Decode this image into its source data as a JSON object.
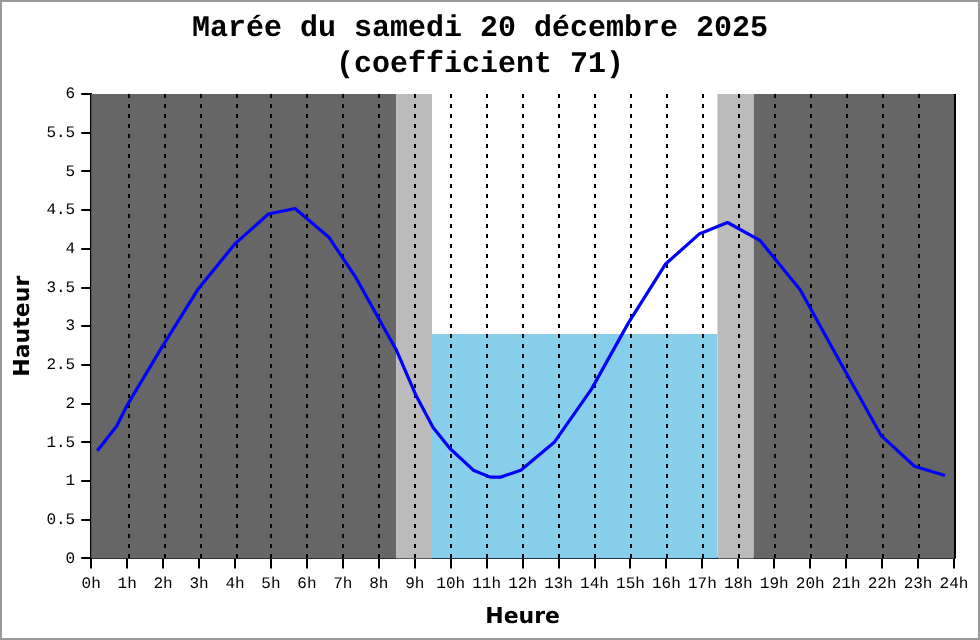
{
  "chart_data": {
    "type": "line",
    "title": "Marée du samedi 20 décembre 2025",
    "subtitle": "(coefficient 71)",
    "xlabel": "Heure",
    "ylabel": "Hauteur",
    "xlim": [
      0,
      24
    ],
    "ylim": [
      0,
      6
    ],
    "xticks": [
      {
        "value": 0,
        "label": "0h"
      },
      {
        "value": 1,
        "label": "1h"
      },
      {
        "value": 2,
        "label": "2h"
      },
      {
        "value": 3,
        "label": "3h"
      },
      {
        "value": 4,
        "label": "4h"
      },
      {
        "value": 5,
        "label": "5h"
      },
      {
        "value": 6,
        "label": "6h"
      },
      {
        "value": 7,
        "label": "7h"
      },
      {
        "value": 8,
        "label": "8h"
      },
      {
        "value": 9,
        "label": "9h"
      },
      {
        "value": 10,
        "label": "10h"
      },
      {
        "value": 11,
        "label": "11h"
      },
      {
        "value": 12,
        "label": "12h"
      },
      {
        "value": 13,
        "label": "13h"
      },
      {
        "value": 14,
        "label": "14h"
      },
      {
        "value": 15,
        "label": "15h"
      },
      {
        "value": 16,
        "label": "16h"
      },
      {
        "value": 17,
        "label": "17h"
      },
      {
        "value": 18,
        "label": "18h"
      },
      {
        "value": 19,
        "label": "19h"
      },
      {
        "value": 20,
        "label": "20h"
      },
      {
        "value": 21,
        "label": "21h"
      },
      {
        "value": 22,
        "label": "22h"
      },
      {
        "value": 23,
        "label": "23h"
      },
      {
        "value": 24,
        "label": "24h"
      }
    ],
    "yticks": [
      0,
      0.5,
      1,
      1.5,
      2,
      2.5,
      3,
      3.5,
      4,
      4.5,
      5,
      5.5,
      6
    ],
    "grid": "x",
    "legend": false,
    "marker": "none",
    "line_style": "solid",
    "bands": [
      {
        "axis": "x",
        "from": 0,
        "to": 8.48,
        "color": "#666666"
      },
      {
        "axis": "x",
        "from": 8.48,
        "to": 9.48,
        "color": "#bbbbbb"
      },
      {
        "axis": "x",
        "from": 17.42,
        "to": 18.43,
        "color": "#bbbbbb"
      },
      {
        "axis": "x",
        "from": 18.43,
        "to": 24,
        "color": "#666666"
      }
    ],
    "series": [
      {
        "type": "area",
        "color": "#87ceeb",
        "x": [
          9.48,
          17.42
        ],
        "values": [
          2.9,
          2.9
        ]
      },
      {
        "color": "#0000ff",
        "x": [
          0.17,
          0.71,
          0.99,
          1.93,
          2.96,
          3.99,
          4.93,
          5.67,
          6.61,
          7.36,
          8.02,
          8.48,
          9.04,
          9.51,
          9.98,
          10.63,
          11.1,
          11.39,
          11.95,
          12.88,
          13.92,
          14.94,
          15.97,
          16.91,
          17.7,
          18.6,
          19.72,
          20.84,
          21.97,
          22.9,
          23.75
        ],
        "values": [
          1.39,
          1.71,
          1.97,
          2.7,
          3.47,
          4.06,
          4.45,
          4.52,
          4.15,
          3.63,
          3.08,
          2.7,
          2.1,
          1.69,
          1.42,
          1.14,
          1.05,
          1.05,
          1.14,
          1.5,
          2.19,
          3.04,
          3.8,
          4.19,
          4.34,
          4.11,
          3.47,
          2.53,
          1.59,
          1.19,
          1.07
        ]
      }
    ]
  }
}
